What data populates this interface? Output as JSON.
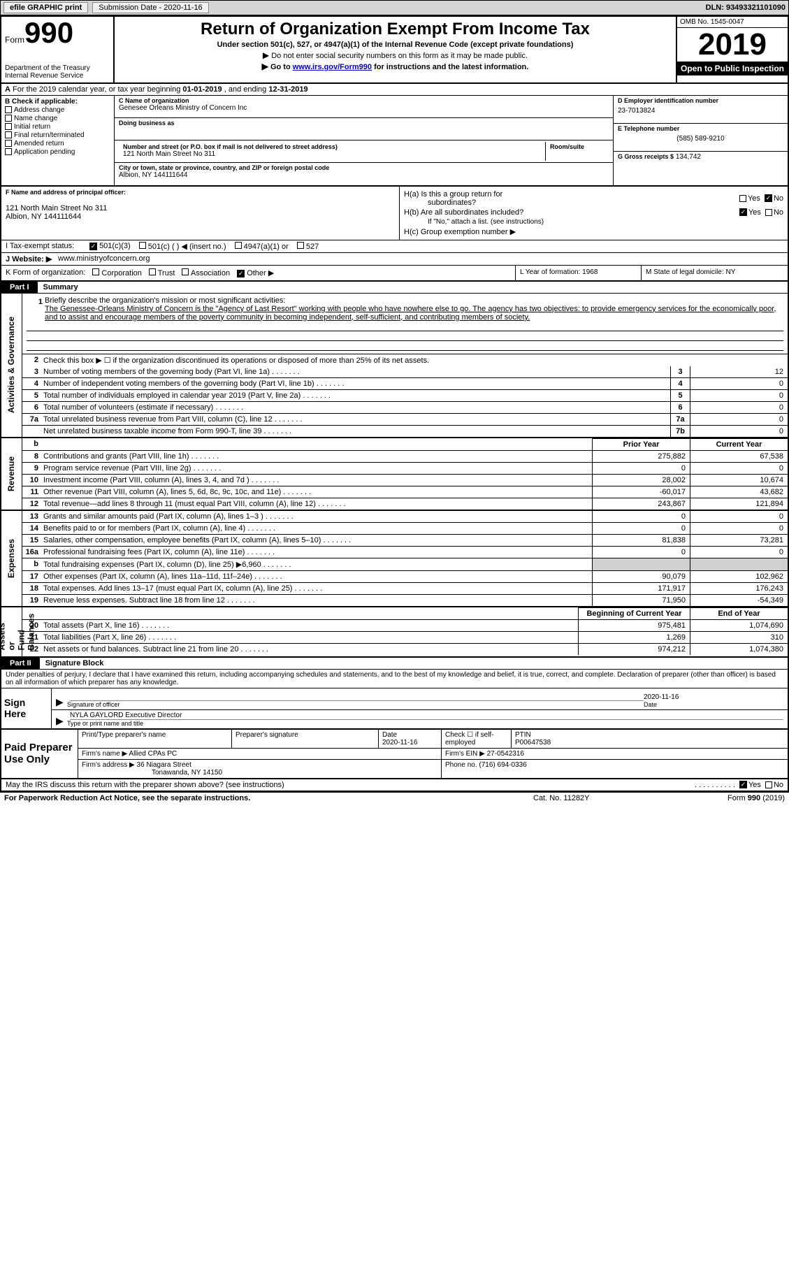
{
  "topbar": {
    "efile": "efile GRAPHIC print",
    "sub_date_label": "Submission Date - 2020-11-16",
    "dln": "DLN: 93493321101090"
  },
  "header": {
    "form_word": "Form",
    "form_num": "990",
    "dept": "Department of the Treasury\nInternal Revenue Service",
    "title": "Return of Organization Exempt From Income Tax",
    "sub1": "Under section 501(c), 527, or 4947(a)(1) of the Internal Revenue Code (except private foundations)",
    "sub2": "Do not enter social security numbers on this form as it may be made public.",
    "sub3_pre": "Go to ",
    "sub3_link": "www.irs.gov/Form990",
    "sub3_post": " for instructions and the latest information.",
    "omb": "OMB No. 1545-0047",
    "year": "2019",
    "open": "Open to Public Inspection"
  },
  "rowA": {
    "pre": "For the 2019 calendar year, or tax year beginning ",
    "begin": "01-01-2019",
    "mid": "  , and ending ",
    "end": "12-31-2019",
    "A": "A"
  },
  "boxB": {
    "title": "B Check if applicable:",
    "addr": "Address change",
    "name": "Name change",
    "init": "Initial return",
    "final": "Final return/terminated",
    "amend": "Amended return",
    "app": "Application pending"
  },
  "boxC": {
    "name_label": "C Name of organization",
    "name": "Genesee Orleans Ministry of Concern Inc",
    "dba": "Doing business as",
    "street_label": "Number and street (or P.O. box if mail is not delivered to street address)",
    "street": "121 North Main Street No 311",
    "room_label": "Room/suite",
    "city_label": "City or town, state or province, country, and ZIP or foreign postal code",
    "city": "Albion, NY  144111644"
  },
  "boxD": {
    "label": "D Employer identification number",
    "val": "23-7013824"
  },
  "boxE": {
    "label": "E Telephone number",
    "val": "(585) 589-9210"
  },
  "boxG": {
    "label": "G Gross receipts $",
    "val": "134,742"
  },
  "boxF": {
    "label": "F Name and address of principal officer:",
    "line1": "121 North Main Street No 311",
    "line2": "Albion, NY  144111644"
  },
  "boxH": {
    "a_label": "H(a)  Is this a group return for",
    "a_sub": "subordinates?",
    "b_label": "H(b)  Are all subordinates included?",
    "b_note": "If \"No,\" attach a list. (see instructions)",
    "c_label": "H(c)  Group exemption number ▶",
    "yes": "Yes",
    "no": "No"
  },
  "rowI": {
    "label": "I   Tax-exempt status:",
    "o1": "501(c)(3)",
    "o2": "501(c) (  ) ◀ (insert no.)",
    "o3": "4947(a)(1) or",
    "o4": "527"
  },
  "rowJ": {
    "label": "J   Website: ▶",
    "val": "www.ministryofconcern.org"
  },
  "rowK": {
    "label": "K Form of organization:",
    "corp": "Corporation",
    "trust": "Trust",
    "assoc": "Association",
    "other": "Other ▶",
    "L": "L Year of formation: 1968",
    "M": "M State of legal domicile: NY"
  },
  "part1": {
    "num": "Part I",
    "title": "Summary"
  },
  "side_labels": {
    "ag": "Activities & Governance",
    "rev": "Revenue",
    "exp": "Expenses",
    "net": "Net Assets or\nFund Balances"
  },
  "summary": {
    "q1_label": "Briefly describe the organization's mission or most significant activities:",
    "q1_text": "The Genessee-Orleans Ministry of Concern is the \"Agency of Last Resort\" working with people who have nowhere else to go. The agency has two objectives: to provide emergency services for the economically poor, and to assist and encourage members of the poverty community in becoming independent, self-sufficient, and contributing members of society.",
    "q2": "Check this box ▶ ☐  if the organization discontinued its operations or disposed of more than 25% of its net assets.",
    "rows": [
      {
        "n": "3",
        "t": "Number of voting members of the governing body (Part VI, line 1a)",
        "id": "3",
        "v": "12"
      },
      {
        "n": "4",
        "t": "Number of independent voting members of the governing body (Part VI, line 1b)",
        "id": "4",
        "v": "0"
      },
      {
        "n": "5",
        "t": "Total number of individuals employed in calendar year 2019 (Part V, line 2a)",
        "id": "5",
        "v": "0"
      },
      {
        "n": "6",
        "t": "Total number of volunteers (estimate if necessary)",
        "id": "6",
        "v": "0"
      },
      {
        "n": "7a",
        "t": "Total unrelated business revenue from Part VIII, column (C), line 12",
        "id": "7a",
        "v": "0"
      },
      {
        "n": "",
        "t": "Net unrelated business taxable income from Form 990-T, line 39",
        "id": "7b",
        "v": "0"
      }
    ],
    "col_prior": "Prior Year",
    "col_curr": "Current Year",
    "rev": [
      {
        "n": "8",
        "t": "Contributions and grants (Part VIII, line 1h)",
        "p": "275,882",
        "c": "67,538"
      },
      {
        "n": "9",
        "t": "Program service revenue (Part VIII, line 2g)",
        "p": "0",
        "c": "0"
      },
      {
        "n": "10",
        "t": "Investment income (Part VIII, column (A), lines 3, 4, and 7d )",
        "p": "28,002",
        "c": "10,674"
      },
      {
        "n": "11",
        "t": "Other revenue (Part VIII, column (A), lines 5, 6d, 8c, 9c, 10c, and 11e)",
        "p": "-60,017",
        "c": "43,682"
      },
      {
        "n": "12",
        "t": "Total revenue—add lines 8 through 11 (must equal Part VIII, column (A), line 12)",
        "p": "243,867",
        "c": "121,894"
      }
    ],
    "exp": [
      {
        "n": "13",
        "t": "Grants and similar amounts paid (Part IX, column (A), lines 1–3 )",
        "p": "0",
        "c": "0"
      },
      {
        "n": "14",
        "t": "Benefits paid to or for members (Part IX, column (A), line 4)",
        "p": "0",
        "c": "0"
      },
      {
        "n": "15",
        "t": "Salaries, other compensation, employee benefits (Part IX, column (A), lines 5–10)",
        "p": "81,838",
        "c": "73,281"
      },
      {
        "n": "16a",
        "t": "Professional fundraising fees (Part IX, column (A), line 11e)",
        "p": "0",
        "c": "0"
      },
      {
        "n": "b",
        "t": "Total fundraising expenses (Part IX, column (D), line 25) ▶6,960",
        "p": "",
        "c": "",
        "shade": true
      },
      {
        "n": "17",
        "t": "Other expenses (Part IX, column (A), lines 11a–11d, 11f–24e)",
        "p": "90,079",
        "c": "102,962"
      },
      {
        "n": "18",
        "t": "Total expenses. Add lines 13–17 (must equal Part IX, column (A), line 25)",
        "p": "171,917",
        "c": "176,243"
      },
      {
        "n": "19",
        "t": "Revenue less expenses. Subtract line 18 from line 12",
        "p": "71,950",
        "c": "-54,349"
      }
    ],
    "col_begin": "Beginning of Current Year",
    "col_end": "End of Year",
    "net": [
      {
        "n": "20",
        "t": "Total assets (Part X, line 16)",
        "p": "975,481",
        "c": "1,074,690"
      },
      {
        "n": "21",
        "t": "Total liabilities (Part X, line 26)",
        "p": "1,269",
        "c": "310"
      },
      {
        "n": "22",
        "t": "Net assets or fund balances. Subtract line 21 from line 20",
        "p": "974,212",
        "c": "1,074,380"
      }
    ],
    "b_label": "b"
  },
  "part2": {
    "num": "Part II",
    "title": "Signature Block"
  },
  "sig": {
    "decl": "Under penalties of perjury, I declare that I have examined this return, including accompanying schedules and statements, and to the best of my knowledge and belief, it is true, correct, and complete. Declaration of preparer (other than officer) is based on all information of which preparer has any knowledge.",
    "sign_here": "Sign Here",
    "sig_of": "Signature of officer",
    "date": "2020-11-16",
    "date_label": "Date",
    "name": "NYLA GAYLORD  Executive Director",
    "name_label": "Type or print name and title"
  },
  "prep": {
    "label": "Paid Preparer Use Only",
    "c1": "Print/Type preparer's name",
    "c2": "Preparer's signature",
    "c3": "Date",
    "c3v": "2020-11-16",
    "c4": "Check ☐ if self-employed",
    "c5": "PTIN",
    "c5v": "P00647538",
    "firm_name_l": "Firm's name   ▶",
    "firm_name": "Allied CPAs PC",
    "firm_ein_l": "Firm's EIN ▶",
    "firm_ein": "27-0542316",
    "firm_addr_l": "Firm's address ▶",
    "firm_addr": "36 Niagara Street",
    "firm_addr2": "Tonawanda, NY  14150",
    "phone_l": "Phone no.",
    "phone": "(716) 694-0336"
  },
  "bottom": {
    "q": "May the IRS discuss this return with the preparer shown above? (see instructions)",
    "yes": "Yes",
    "no": "No"
  },
  "footer": {
    "l": "For Paperwork Reduction Act Notice, see the separate instructions.",
    "m": "Cat. No. 11282Y",
    "r": "Form 990 (2019)"
  }
}
